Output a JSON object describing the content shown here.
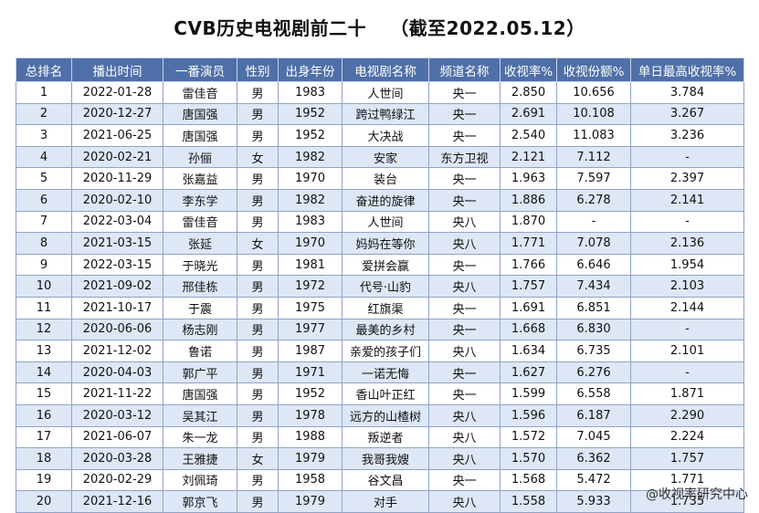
{
  "title": {
    "main": "CVB历史电视剧前二十",
    "date": "（截至2022.05.12）"
  },
  "headers": [
    "总排名",
    "播出时间",
    "一番演员",
    "性别",
    "出身年份",
    "电视剧名称",
    "频道名称",
    "收视率%",
    "收视份额%",
    "单日最高收视率%"
  ],
  "rows": [
    [
      "1",
      "2022-01-28",
      "雷佳音",
      "男",
      "1983",
      "人世间",
      "央一",
      "2.850",
      "10.656",
      "3.784"
    ],
    [
      "2",
      "2020-12-27",
      "唐国强",
      "男",
      "1952",
      "跨过鸭绿江",
      "央一",
      "2.691",
      "10.108",
      "3.267"
    ],
    [
      "3",
      "2021-06-25",
      "唐国强",
      "男",
      "1952",
      "大决战",
      "央一",
      "2.540",
      "11.083",
      "3.236"
    ],
    [
      "4",
      "2020-02-21",
      "孙俪",
      "女",
      "1982",
      "安家",
      "东方卫视",
      "2.121",
      "7.112",
      "-"
    ],
    [
      "5",
      "2020-11-29",
      "张嘉益",
      "男",
      "1970",
      "装台",
      "央一",
      "1.963",
      "7.597",
      "2.397"
    ],
    [
      "6",
      "2020-02-10",
      "李东学",
      "男",
      "1982",
      "奋进的旋律",
      "央一",
      "1.886",
      "6.278",
      "2.141"
    ],
    [
      "7",
      "2022-03-04",
      "雷佳音",
      "男",
      "1983",
      "人世间",
      "央八",
      "1.870",
      "-",
      "-"
    ],
    [
      "8",
      "2021-03-15",
      "张延",
      "女",
      "1970",
      "妈妈在等你",
      "央八",
      "1.771",
      "7.078",
      "2.136"
    ],
    [
      "9",
      "2022-03-15",
      "于晓光",
      "男",
      "1981",
      "爱拼会赢",
      "央一",
      "1.766",
      "6.646",
      "1.954"
    ],
    [
      "10",
      "2021-09-02",
      "邢佳栋",
      "男",
      "1972",
      "代号·山豹",
      "央八",
      "1.757",
      "7.434",
      "2.103"
    ],
    [
      "11",
      "2021-10-17",
      "于震",
      "男",
      "1975",
      "红旗渠",
      "央一",
      "1.691",
      "6.851",
      "2.144"
    ],
    [
      "12",
      "2020-06-06",
      "杨志刚",
      "男",
      "1977",
      "最美的乡村",
      "央一",
      "1.668",
      "6.830",
      "-"
    ],
    [
      "13",
      "2021-12-02",
      "鲁诺",
      "男",
      "1987",
      "亲爱的孩子们",
      "央八",
      "1.634",
      "6.735",
      "2.101"
    ],
    [
      "14",
      "2020-04-03",
      "郭广平",
      "男",
      "1971",
      "一诺无悔",
      "央一",
      "1.627",
      "6.276",
      "-"
    ],
    [
      "15",
      "2021-11-22",
      "唐国强",
      "男",
      "1952",
      "香山叶正红",
      "央一",
      "1.599",
      "6.558",
      "1.871"
    ],
    [
      "16",
      "2020-03-12",
      "吴其江",
      "男",
      "1978",
      "远方的山楂树",
      "央八",
      "1.596",
      "6.187",
      "2.290"
    ],
    [
      "17",
      "2021-06-07",
      "朱一龙",
      "男",
      "1988",
      "叛逆者",
      "央八",
      "1.572",
      "7.045",
      "2.224"
    ],
    [
      "18",
      "2020-03-28",
      "王雅捷",
      "女",
      "1979",
      "我哥我嫂",
      "央八",
      "1.570",
      "6.362",
      "1.757"
    ],
    [
      "19",
      "2020-02-29",
      "刘佩琦",
      "男",
      "1958",
      "谷文昌",
      "央一",
      "1.568",
      "5.472",
      "1.771"
    ],
    [
      "20",
      "2021-12-16",
      "郭京飞",
      "男",
      "1979",
      "对手",
      "央八",
      "1.558",
      "5.933",
      "1.735"
    ]
  ],
  "watermark": "@收视率研究中心",
  "colors": {
    "header_bg": "#4f6fa8",
    "header_text": "#ffffff",
    "row_alt_bg": "#dde7f5",
    "row_bg": "#ffffff",
    "border": "#8fa3c8"
  }
}
